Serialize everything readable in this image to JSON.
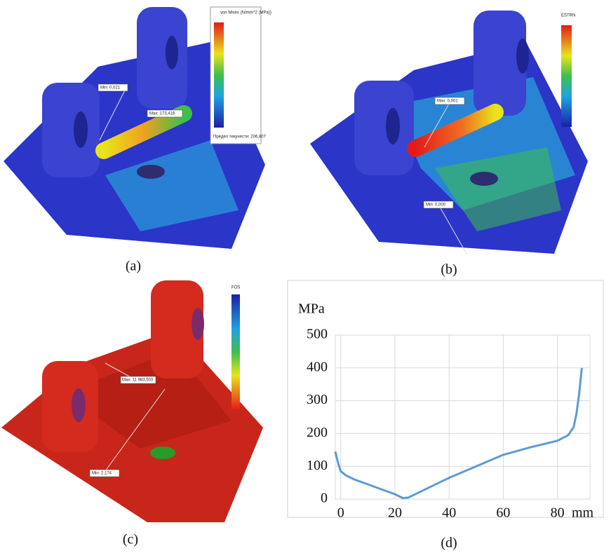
{
  "panels": [
    {
      "caption": "(a)",
      "legend_title": "von Mises (N/mm^2 (MPa))",
      "max_label": "Max: 173,416",
      "min_label": "Min: 0,021",
      "note": "Предел текучести: 206,807"
    },
    {
      "caption": "(b)",
      "legend_title": "ESTRN",
      "max_label": "Max: 0,001",
      "min_label": "Min: 0,000"
    },
    {
      "caption": "(c)",
      "legend_title": "FOS",
      "max_label": "Max: 11 983,503",
      "min_label": "Min: 2,174"
    },
    {
      "caption": "(d)"
    }
  ],
  "chart_data": {
    "type": "line",
    "x_label": "mm",
    "y_label": "MPa",
    "color": "#5b9bd5",
    "x": [
      -2,
      -1,
      0,
      2,
      5,
      10,
      15,
      20,
      23,
      25,
      30,
      40,
      50,
      60,
      70,
      80,
      84,
      86,
      87,
      88,
      89
    ],
    "values": [
      145,
      110,
      85,
      72,
      60,
      45,
      30,
      15,
      3,
      5,
      25,
      65,
      100,
      135,
      158,
      178,
      195,
      220,
      260,
      320,
      400
    ],
    "xlim": [
      -2,
      92
    ],
    "ylim": [
      0,
      500
    ],
    "xticks": [
      0,
      20,
      40,
      60,
      80
    ],
    "yticks": [
      0,
      100,
      200,
      300,
      400,
      500
    ],
    "grid": true
  }
}
